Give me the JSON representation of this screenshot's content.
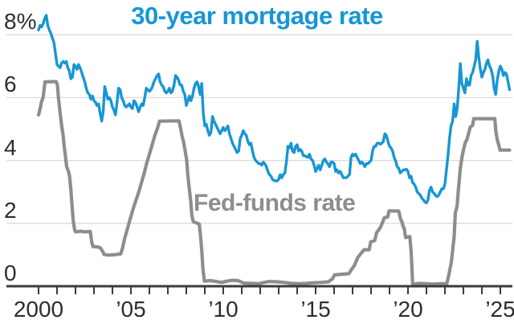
{
  "page": {
    "background": "#ffffff"
  },
  "colors": {
    "accent_blue": "#1796d5",
    "accent_gray": "#8d8d8d",
    "grid": "#dcdcdc",
    "axis": "#3b3b3b",
    "tick": "#3b3b3b",
    "text": "#2d2d2d"
  },
  "chart_data": {
    "type": "line",
    "title": "30-year mortgage rate",
    "title_color": "#1796d5",
    "xlabel": "",
    "ylabel": "",
    "grid": "horizontal-only",
    "legend_position": "inline-labels",
    "annotation": {
      "text": "Fed-funds rate",
      "color": "#8d8d8d"
    },
    "x_axis": {
      "tick_start": 2000,
      "tick_end": 2025,
      "tick_interval_years": 1,
      "range": [
        2000,
        2025.5
      ],
      "labels": [
        {
          "year": 2000,
          "label": "2000"
        },
        {
          "year": 2005,
          "label": "’05"
        },
        {
          "year": 2010,
          "label": "’10"
        },
        {
          "year": 2015,
          "label": "’15"
        },
        {
          "year": 2020,
          "label": "’20"
        },
        {
          "year": 2025,
          "label": "’25"
        }
      ]
    },
    "y_axis": {
      "unit": "percent",
      "range": [
        0,
        8.75
      ],
      "gridline_values": [
        2,
        4,
        6,
        8
      ],
      "ticks": [
        {
          "value": 8,
          "label": "8%"
        },
        {
          "value": 6,
          "label": "6"
        },
        {
          "value": 4,
          "label": "4"
        },
        {
          "value": 2,
          "label": "2"
        },
        {
          "value": 0,
          "label": "0"
        }
      ]
    },
    "series": [
      {
        "id": "fed-funds",
        "name": "Fed-funds rate",
        "color": "#8d8d8d",
        "stroke_width": 4.2,
        "points": [
          [
            2000.0,
            5.45
          ],
          [
            2000.1,
            5.68
          ],
          [
            2000.15,
            5.85
          ],
          [
            2000.25,
            6.02
          ],
          [
            2000.35,
            6.5
          ],
          [
            2000.95,
            6.51
          ],
          [
            2001.02,
            6.4
          ],
          [
            2001.08,
            5.98
          ],
          [
            2001.17,
            5.5
          ],
          [
            2001.25,
            5.1
          ],
          [
            2001.33,
            4.8
          ],
          [
            2001.38,
            4.5
          ],
          [
            2001.45,
            4.15
          ],
          [
            2001.52,
            3.8
          ],
          [
            2001.62,
            3.65
          ],
          [
            2001.68,
            3.5
          ],
          [
            2001.75,
            3.05
          ],
          [
            2001.82,
            2.5
          ],
          [
            2001.88,
            2.08
          ],
          [
            2001.95,
            1.8
          ],
          [
            2002.0,
            1.73
          ],
          [
            2002.3,
            1.75
          ],
          [
            2002.45,
            1.73
          ],
          [
            2002.8,
            1.74
          ],
          [
            2002.88,
            1.4
          ],
          [
            2002.95,
            1.26
          ],
          [
            2003.2,
            1.25
          ],
          [
            2003.35,
            1.22
          ],
          [
            2003.48,
            1.1
          ],
          [
            2003.55,
            1.01
          ],
          [
            2003.8,
            0.99
          ],
          [
            2004.1,
            1.0
          ],
          [
            2004.45,
            1.03
          ],
          [
            2004.55,
            1.22
          ],
          [
            2004.65,
            1.5
          ],
          [
            2004.8,
            1.8
          ],
          [
            2004.95,
            2.12
          ],
          [
            2005.1,
            2.42
          ],
          [
            2005.25,
            2.7
          ],
          [
            2005.4,
            2.95
          ],
          [
            2005.55,
            3.25
          ],
          [
            2005.7,
            3.55
          ],
          [
            2005.85,
            3.9
          ],
          [
            2006.0,
            4.2
          ],
          [
            2006.15,
            4.5
          ],
          [
            2006.3,
            4.8
          ],
          [
            2006.45,
            5.05
          ],
          [
            2006.55,
            5.25
          ],
          [
            2007.6,
            5.26
          ],
          [
            2007.7,
            5.0
          ],
          [
            2007.78,
            4.75
          ],
          [
            2007.85,
            4.6
          ],
          [
            2007.94,
            4.3
          ],
          [
            2008.02,
            4.0
          ],
          [
            2008.08,
            3.55
          ],
          [
            2008.16,
            3.1
          ],
          [
            2008.24,
            2.7
          ],
          [
            2008.3,
            2.25
          ],
          [
            2008.38,
            2.05
          ],
          [
            2008.7,
            1.98
          ],
          [
            2008.78,
            1.55
          ],
          [
            2008.84,
            1.1
          ],
          [
            2008.9,
            0.55
          ],
          [
            2008.98,
            0.16
          ],
          [
            2009.3,
            0.18
          ],
          [
            2009.6,
            0.15
          ],
          [
            2009.9,
            0.12
          ],
          [
            2010.2,
            0.16
          ],
          [
            2010.5,
            0.19
          ],
          [
            2010.8,
            0.18
          ],
          [
            2011.1,
            0.1
          ],
          [
            2011.5,
            0.09
          ],
          [
            2011.9,
            0.08
          ],
          [
            2012.2,
            0.12
          ],
          [
            2012.5,
            0.15
          ],
          [
            2012.9,
            0.14
          ],
          [
            2013.3,
            0.12
          ],
          [
            2013.7,
            0.09
          ],
          [
            2014.1,
            0.08
          ],
          [
            2014.5,
            0.09
          ],
          [
            2014.9,
            0.11
          ],
          [
            2015.3,
            0.12
          ],
          [
            2015.7,
            0.14
          ],
          [
            2015.92,
            0.24
          ],
          [
            2016.02,
            0.36
          ],
          [
            2016.4,
            0.38
          ],
          [
            2016.8,
            0.4
          ],
          [
            2016.95,
            0.54
          ],
          [
            2017.1,
            0.66
          ],
          [
            2017.28,
            0.91
          ],
          [
            2017.45,
            1.04
          ],
          [
            2017.62,
            1.16
          ],
          [
            2017.9,
            1.16
          ],
          [
            2017.98,
            1.41
          ],
          [
            2018.2,
            1.45
          ],
          [
            2018.3,
            1.7
          ],
          [
            2018.45,
            1.82
          ],
          [
            2018.55,
            1.92
          ],
          [
            2018.72,
            2.18
          ],
          [
            2018.9,
            2.2
          ],
          [
            2018.98,
            2.4
          ],
          [
            2019.5,
            2.39
          ],
          [
            2019.6,
            2.13
          ],
          [
            2019.68,
            2.04
          ],
          [
            2019.74,
            1.9
          ],
          [
            2019.8,
            1.83
          ],
          [
            2019.87,
            1.55
          ],
          [
            2020.1,
            1.58
          ],
          [
            2020.17,
            1.1
          ],
          [
            2020.21,
            0.65
          ],
          [
            2020.25,
            0.06
          ],
          [
            2020.6,
            0.09
          ],
          [
            2021.0,
            0.08
          ],
          [
            2021.4,
            0.07
          ],
          [
            2021.8,
            0.08
          ],
          [
            2022.1,
            0.08
          ],
          [
            2022.2,
            0.33
          ],
          [
            2022.35,
            0.77
          ],
          [
            2022.43,
            1.21
          ],
          [
            2022.5,
            1.58
          ],
          [
            2022.56,
            2.33
          ],
          [
            2022.66,
            2.56
          ],
          [
            2022.73,
            3.08
          ],
          [
            2022.84,
            3.78
          ],
          [
            2022.92,
            4.1
          ],
          [
            2023.0,
            4.33
          ],
          [
            2023.1,
            4.57
          ],
          [
            2023.18,
            4.65
          ],
          [
            2023.27,
            4.83
          ],
          [
            2023.37,
            5.06
          ],
          [
            2023.5,
            5.12
          ],
          [
            2023.56,
            5.33
          ],
          [
            2024.7,
            5.33
          ],
          [
            2024.76,
            4.9
          ],
          [
            2024.84,
            4.64
          ],
          [
            2024.92,
            4.48
          ],
          [
            2024.98,
            4.33
          ],
          [
            2025.5,
            4.33
          ]
        ]
      },
      {
        "id": "mortgage-rate",
        "name": "30-year mortgage rate",
        "color": "#1796d5",
        "stroke_width": 3.4,
        "t0": 2000,
        "dt": 0.08333,
        "values": [
          8.15,
          8.3,
          8.25,
          8.35,
          8.52,
          8.62,
          8.3,
          8.15,
          8.05,
          7.9,
          7.75,
          7.4,
          7.05,
          7.0,
          6.95,
          7.1,
          7.15,
          7.1,
          7.15,
          6.95,
          6.85,
          6.6,
          6.65,
          7.05,
          7.0,
          6.9,
          7.05,
          6.95,
          6.8,
          6.65,
          6.5,
          6.3,
          6.15,
          6.1,
          5.95,
          6.05,
          5.9,
          5.85,
          5.75,
          5.8,
          5.5,
          5.25,
          5.55,
          6.35,
          6.15,
          5.95,
          6.0,
          5.9,
          5.7,
          5.6,
          5.45,
          5.85,
          6.3,
          6.25,
          6.0,
          5.9,
          5.75,
          5.7,
          5.75,
          5.8,
          5.7,
          5.65,
          5.9,
          5.85,
          5.7,
          5.55,
          5.7,
          5.8,
          5.75,
          6.0,
          6.3,
          6.25,
          6.2,
          6.25,
          6.35,
          6.5,
          6.6,
          6.7,
          6.75,
          6.5,
          6.4,
          6.35,
          6.2,
          6.15,
          6.2,
          6.3,
          6.15,
          6.2,
          6.4,
          6.7,
          6.65,
          6.55,
          6.4,
          6.4,
          6.2,
          6.1,
          5.75,
          5.9,
          6.05,
          5.9,
          6.05,
          6.3,
          6.45,
          6.5,
          6.35,
          6.1,
          6.45,
          5.5,
          5.1,
          5.15,
          4.95,
          4.8,
          4.9,
          5.4,
          5.25,
          5.15,
          5.05,
          4.95,
          4.85,
          4.95,
          5.05,
          4.95,
          5.0,
          5.1,
          4.85,
          4.7,
          4.55,
          4.45,
          4.35,
          4.25,
          4.3,
          4.7,
          4.8,
          4.95,
          4.85,
          4.8,
          4.6,
          4.5,
          4.55,
          4.3,
          4.1,
          4.0,
          3.95,
          3.9,
          3.9,
          3.85,
          3.95,
          3.9,
          3.8,
          3.65,
          3.55,
          3.5,
          3.4,
          3.36,
          3.35,
          3.35,
          3.4,
          3.55,
          3.45,
          3.55,
          3.6,
          3.95,
          4.45,
          4.4,
          4.55,
          4.3,
          4.25,
          4.45,
          4.5,
          4.3,
          4.35,
          4.3,
          4.15,
          4.15,
          4.12,
          4.1,
          4.2,
          4.05,
          4.0,
          3.85,
          3.65,
          3.75,
          3.85,
          3.7,
          3.85,
          4.0,
          4.05,
          3.95,
          3.9,
          3.8,
          3.95,
          3.95,
          3.9,
          3.65,
          3.7,
          3.6,
          3.65,
          3.55,
          3.45,
          3.45,
          3.45,
          3.5,
          3.55,
          4.1,
          4.2,
          4.15,
          4.2,
          4.1,
          4.0,
          3.9,
          3.95,
          3.9,
          3.8,
          3.9,
          3.9,
          3.95,
          4.0,
          4.3,
          4.45,
          4.45,
          4.55,
          4.55,
          4.52,
          4.55,
          4.6,
          4.85,
          4.8,
          4.6,
          4.45,
          4.4,
          4.3,
          4.1,
          3.99,
          3.8,
          3.75,
          3.6,
          3.65,
          3.7,
          3.7,
          3.72,
          3.65,
          3.45,
          3.5,
          3.3,
          3.25,
          3.15,
          3.0,
          2.95,
          2.9,
          2.8,
          2.75,
          2.68,
          2.65,
          2.75,
          3.05,
          3.15,
          3.0,
          2.95,
          2.88,
          2.85,
          2.9,
          3.0,
          3.1,
          3.1,
          3.25,
          3.7,
          4.15,
          4.7,
          5.1,
          5.25,
          5.8,
          5.4,
          5.65,
          6.3,
          7.08,
          6.45,
          6.3,
          6.15,
          6.6,
          6.4,
          6.4,
          6.7,
          6.8,
          7.0,
          7.2,
          7.79,
          7.3,
          6.9,
          6.65,
          6.8,
          6.9,
          7.1,
          7.2,
          7.0,
          6.9,
          6.7,
          6.3,
          6.1,
          6.55,
          6.85,
          7.0,
          6.9,
          6.7,
          6.8,
          6.75,
          6.5,
          6.25
        ]
      }
    ]
  }
}
